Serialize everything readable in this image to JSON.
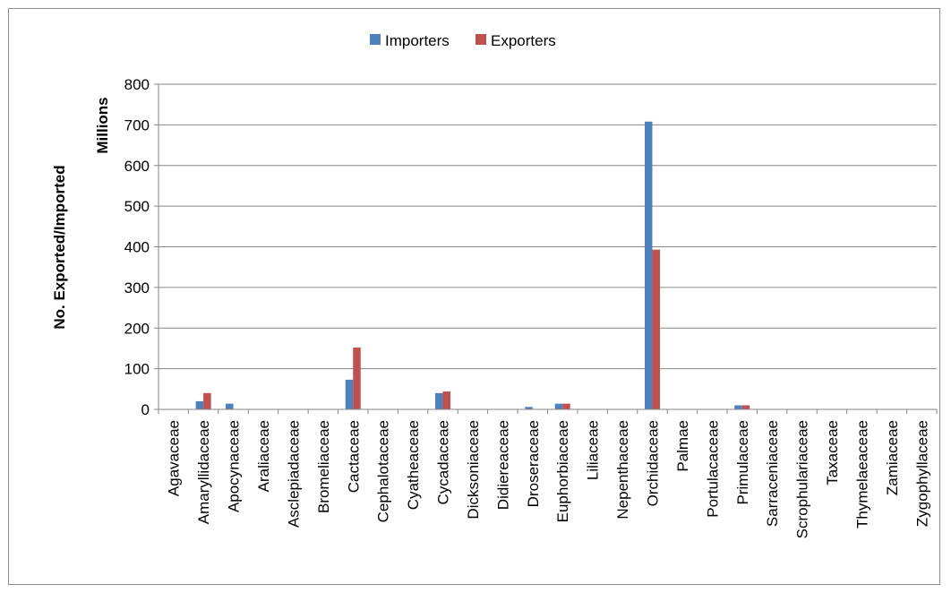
{
  "chart_data": {
    "type": "bar",
    "title": "",
    "xlabel": "",
    "ylabel": "No. Exported/Imported",
    "yunit_label": "Millions",
    "ylim": [
      0,
      800
    ],
    "yticks": [
      0,
      100,
      200,
      300,
      400,
      500,
      600,
      700,
      800
    ],
    "grid": true,
    "legend_position": "top-center",
    "categories": [
      "Agavaceae",
      "Amaryllidaceae",
      "Apocynaceae",
      "Araliaceae",
      "Asclepiadaceae",
      "Bromeliaceae",
      "Cactaceae",
      "Cephalotaceae",
      "Cyatheaceae",
      "Cycadaceae",
      "Dicksoniaceae",
      "Didiereaceae",
      "Droseraceae",
      "Euphorbiaceae",
      "Liliaceae",
      "Nepenthaceae",
      "Orchidaceae",
      "Palmae",
      "Portulacaceae",
      "Primulaceae",
      "Sarraceniaceae",
      "Scrophulariaceae",
      "Taxaceae",
      "Thymelaeaceae",
      "Zamiaceae",
      "Zygophyllaceae"
    ],
    "series": [
      {
        "name": "Importers",
        "color": "#4f81bd",
        "values": [
          1,
          20,
          14,
          1,
          1,
          1,
          73,
          0.5,
          0.5,
          40,
          1,
          0.5,
          6,
          14,
          0.5,
          1,
          708,
          1,
          1,
          10,
          1,
          1,
          0.5,
          1,
          1,
          1
        ]
      },
      {
        "name": "Exporters",
        "color": "#c0504d",
        "values": [
          1,
          40,
          1,
          0.5,
          0.5,
          1,
          152,
          0.5,
          0.5,
          44,
          0.5,
          0.5,
          1,
          14,
          0.5,
          0.5,
          393,
          1,
          0.5,
          10,
          1,
          0.5,
          0.5,
          0.5,
          0.5,
          1
        ]
      }
    ]
  }
}
